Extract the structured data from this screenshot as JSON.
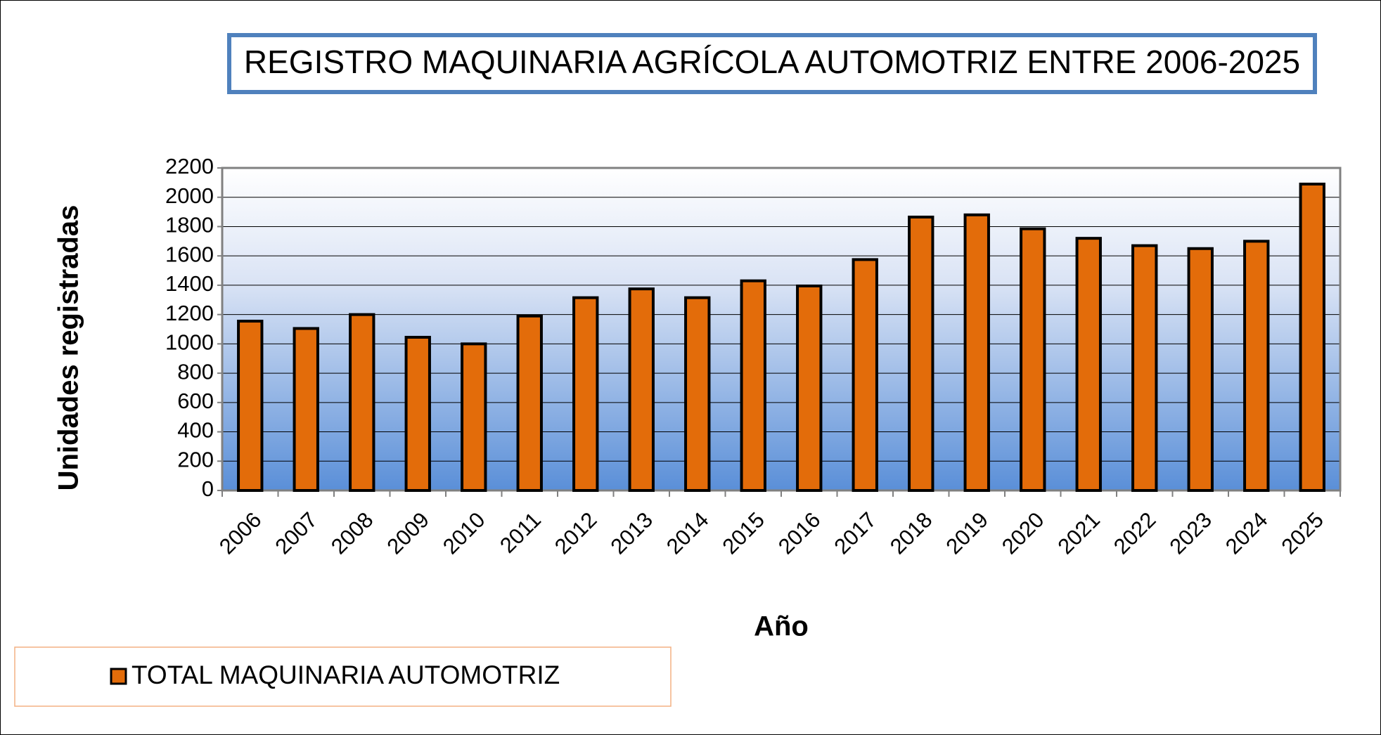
{
  "chart_data": {
    "type": "bar",
    "title": "REGISTRO MAQUINARIA AGRÍCOLA AUTOMOTRIZ ENTRE 2006-2025",
    "x_label": "Año",
    "y_label": "Unidades registradas",
    "categories": [
      "2006",
      "2007",
      "2008",
      "2009",
      "2010",
      "2011",
      "2012",
      "2013",
      "2014",
      "2015",
      "2016",
      "2017",
      "2018",
      "2019",
      "2020",
      "2021",
      "2022",
      "2023",
      "2024",
      "2025"
    ],
    "series": [
      {
        "name": "TOTAL MAQUINARIA AUTOMOTRIZ",
        "color": "#e36c0a",
        "values": [
          1155,
          1105,
          1200,
          1045,
          1000,
          1190,
          1315,
          1375,
          1315,
          1430,
          1395,
          1575,
          1865,
          1880,
          1785,
          1720,
          1670,
          1650,
          1700,
          2090
        ]
      }
    ],
    "ylim": [
      0,
      2200
    ],
    "yticks": [
      0,
      200,
      400,
      600,
      800,
      1000,
      1200,
      1400,
      1600,
      1800,
      2000,
      2200
    ],
    "grid": true,
    "legend": "bottom-left"
  }
}
